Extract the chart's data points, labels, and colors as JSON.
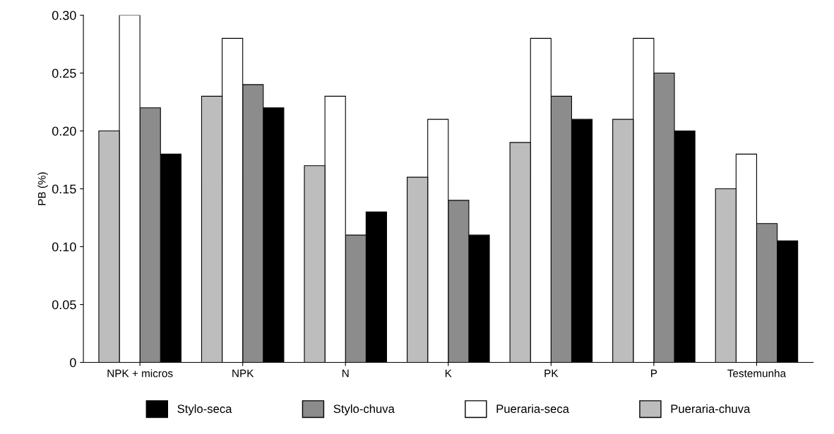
{
  "chart_data": {
    "type": "bar",
    "ylabel": "PB (%)",
    "categories": [
      "NPK + micros",
      "NPK",
      "N",
      "K",
      "PK",
      "P",
      "Testemunha"
    ],
    "series": [
      {
        "name": "Stylo-seca",
        "color": "#000000",
        "values": [
          0.18,
          0.22,
          0.13,
          0.11,
          0.21,
          0.2,
          0.105
        ]
      },
      {
        "name": "Stylo-chuva",
        "color": "#8c8c8c",
        "values": [
          0.22,
          0.24,
          0.11,
          0.14,
          0.23,
          0.25,
          0.12
        ]
      },
      {
        "name": "Pueraria-seca",
        "color": "#ffffff",
        "values": [
          0.3,
          0.28,
          0.23,
          0.21,
          0.28,
          0.28,
          0.18
        ]
      },
      {
        "name": "Pueraria-chuva",
        "color": "#bdbdbd",
        "values": [
          0.2,
          0.23,
          0.17,
          0.16,
          0.19,
          0.21,
          0.15
        ]
      }
    ],
    "ylim": [
      0,
      0.3
    ],
    "yticks": [
      {
        "value": 0,
        "label": "0"
      },
      0.05,
      {
        "value": 0.1,
        "label": "0.10"
      },
      0.15,
      {
        "value": 0.2,
        "label": "0.20"
      },
      0.25,
      {
        "value": 0.3,
        "label": "0.30"
      }
    ],
    "legend": "bottom",
    "grid": false
  }
}
